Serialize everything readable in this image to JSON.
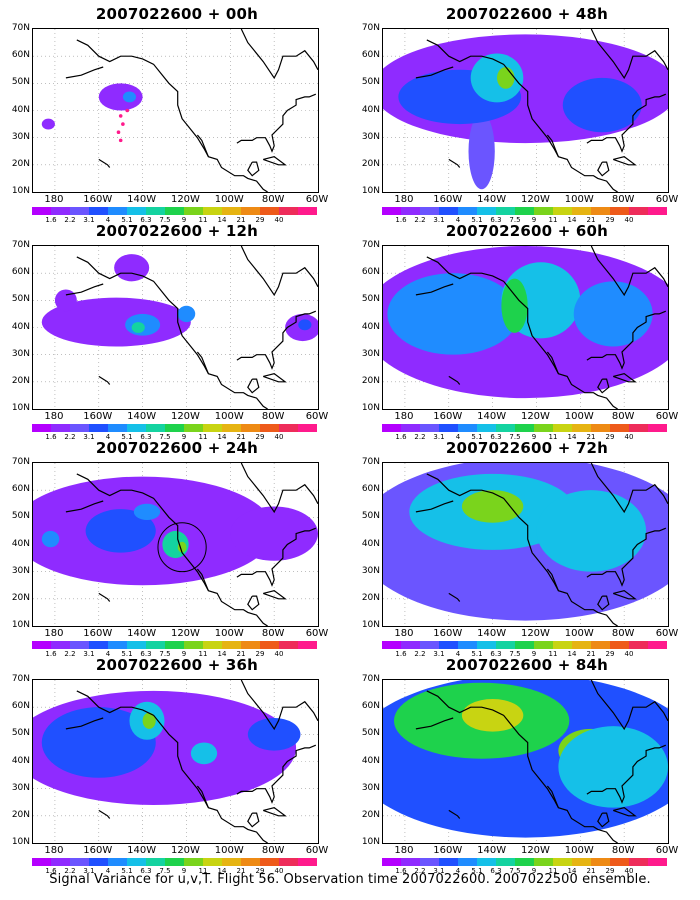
{
  "caption": "Signal Variance for u,v,T. Flight 56. Observation time 2007022600. 2007022500 ensemble.",
  "colorbar": {
    "colors": [
      "#b400ff",
      "#8f2bff",
      "#6b55ff",
      "#2050ff",
      "#1f8cff",
      "#15c0e8",
      "#14d3a0",
      "#1ed24c",
      "#7ad41c",
      "#c8d412",
      "#e6b412",
      "#ee8a14",
      "#ee5a1a",
      "#ee2c5a",
      "#ff1a8c"
    ],
    "labels": [
      "1.6",
      "2.2",
      "3.1",
      "4",
      "5.1",
      "6.3",
      "7.5",
      "9",
      "11",
      "14",
      "21",
      "29",
      "40"
    ]
  },
  "axes": {
    "y_labels": [
      "70N",
      "60N",
      "50N",
      "40N",
      "30N",
      "20N",
      "10N"
    ],
    "x_labels": [
      "180",
      "160W",
      "140W",
      "120W",
      "100W",
      "80W",
      "60W"
    ]
  },
  "chart_data": [
    {
      "type": "heatmap",
      "title": "2007022600 + 00h",
      "lon_range": [
        -190,
        -60
      ],
      "lat_range": [
        10,
        70
      ],
      "blobs": [
        {
          "lon": -150,
          "lat": 45,
          "rx": 10,
          "ry": 5,
          "level": 1
        },
        {
          "lon": -146,
          "lat": 45,
          "rx": 3,
          "ry": 2,
          "level": 4
        },
        {
          "lon": -183,
          "lat": 35,
          "rx": 3,
          "ry": 2,
          "level": 1
        }
      ],
      "markers": [
        {
          "lon": -150,
          "lat": 38
        },
        {
          "lon": -149,
          "lat": 35
        },
        {
          "lon": -151,
          "lat": 32
        },
        {
          "lon": -150,
          "lat": 29
        },
        {
          "lon": -147,
          "lat": 40
        }
      ]
    },
    {
      "type": "heatmap",
      "title": "2007022600 + 12h",
      "lon_range": [
        -190,
        -60
      ],
      "lat_range": [
        10,
        70
      ],
      "blobs": [
        {
          "lon": -152,
          "lat": 42,
          "rx": 34,
          "ry": 9,
          "level": 1
        },
        {
          "lon": -145,
          "lat": 62,
          "rx": 8,
          "ry": 5,
          "level": 1
        },
        {
          "lon": -175,
          "lat": 50,
          "rx": 5,
          "ry": 4,
          "level": 1
        },
        {
          "lon": -140,
          "lat": 41,
          "rx": 8,
          "ry": 4,
          "level": 4
        },
        {
          "lon": -142,
          "lat": 40,
          "rx": 3,
          "ry": 2,
          "level": 6
        },
        {
          "lon": -120,
          "lat": 45,
          "rx": 4,
          "ry": 3,
          "level": 4
        },
        {
          "lon": -67,
          "lat": 40,
          "rx": 8,
          "ry": 5,
          "level": 1
        },
        {
          "lon": -66,
          "lat": 41,
          "rx": 3,
          "ry": 2,
          "level": 3
        }
      ]
    },
    {
      "type": "heatmap",
      "title": "2007022600 + 24h",
      "lon_range": [
        -190,
        -60
      ],
      "lat_range": [
        10,
        70
      ],
      "blobs": [
        {
          "lon": -140,
          "lat": 45,
          "rx": 60,
          "ry": 20,
          "level": 1
        },
        {
          "lon": -80,
          "lat": 44,
          "rx": 20,
          "ry": 10,
          "level": 1
        },
        {
          "lon": -150,
          "lat": 45,
          "rx": 16,
          "ry": 8,
          "level": 3
        },
        {
          "lon": -182,
          "lat": 42,
          "rx": 4,
          "ry": 3,
          "level": 4
        },
        {
          "lon": -125,
          "lat": 40,
          "rx": 6,
          "ry": 5,
          "level": 6
        },
        {
          "lon": -122,
          "lat": 39,
          "rx": 2,
          "ry": 2,
          "level": 8
        },
        {
          "lon": -138,
          "lat": 52,
          "rx": 6,
          "ry": 3,
          "level": 4
        }
      ],
      "rings": [
        {
          "lon": -122,
          "lat": 39,
          "rlon": 11,
          "rlat": 9
        }
      ]
    },
    {
      "type": "heatmap",
      "title": "2007022600 + 36h",
      "lon_range": [
        -190,
        -60
      ],
      "lat_range": [
        10,
        70
      ],
      "blobs": [
        {
          "lon": -135,
          "lat": 45,
          "rx": 65,
          "ry": 21,
          "level": 1
        },
        {
          "lon": -160,
          "lat": 47,
          "rx": 26,
          "ry": 13,
          "level": 3
        },
        {
          "lon": -138,
          "lat": 55,
          "rx": 8,
          "ry": 7,
          "level": 5
        },
        {
          "lon": -137,
          "lat": 55,
          "rx": 3,
          "ry": 3,
          "level": 8
        },
        {
          "lon": -112,
          "lat": 43,
          "rx": 6,
          "ry": 4,
          "level": 5
        },
        {
          "lon": -80,
          "lat": 50,
          "rx": 12,
          "ry": 6,
          "level": 3
        }
      ]
    },
    {
      "type": "heatmap",
      "title": "2007022600 + 48h",
      "lon_range": [
        -190,
        -60
      ],
      "lat_range": [
        10,
        70
      ],
      "blobs": [
        {
          "lon": -125,
          "lat": 48,
          "rx": 70,
          "ry": 20,
          "level": 1
        },
        {
          "lon": -145,
          "lat": 25,
          "rx": 6,
          "ry": 14,
          "level": 2
        },
        {
          "lon": -155,
          "lat": 45,
          "rx": 28,
          "ry": 10,
          "level": 3
        },
        {
          "lon": -138,
          "lat": 52,
          "rx": 12,
          "ry": 9,
          "level": 5
        },
        {
          "lon": -134,
          "lat": 52,
          "rx": 4,
          "ry": 4,
          "level": 8
        },
        {
          "lon": -90,
          "lat": 42,
          "rx": 18,
          "ry": 10,
          "level": 3
        }
      ]
    },
    {
      "type": "heatmap",
      "title": "2007022600 + 60h",
      "lon_range": [
        -190,
        -60
      ],
      "lat_range": [
        10,
        70
      ],
      "blobs": [
        {
          "lon": -125,
          "lat": 42,
          "rx": 75,
          "ry": 28,
          "level": 1
        },
        {
          "lon": -158,
          "lat": 45,
          "rx": 30,
          "ry": 15,
          "level": 4
        },
        {
          "lon": -118,
          "lat": 50,
          "rx": 18,
          "ry": 14,
          "level": 5
        },
        {
          "lon": -130,
          "lat": 48,
          "rx": 6,
          "ry": 10,
          "level": 7
        },
        {
          "lon": -85,
          "lat": 45,
          "rx": 18,
          "ry": 12,
          "level": 4
        }
      ]
    },
    {
      "type": "heatmap",
      "title": "2007022600 + 72h",
      "lon_range": [
        -190,
        -60
      ],
      "lat_range": [
        10,
        70
      ],
      "blobs": [
        {
          "lon": -125,
          "lat": 42,
          "rx": 78,
          "ry": 30,
          "level": 2
        },
        {
          "lon": -140,
          "lat": 52,
          "rx": 38,
          "ry": 14,
          "level": 5
        },
        {
          "lon": -140,
          "lat": 54,
          "rx": 14,
          "ry": 6,
          "level": 8
        },
        {
          "lon": -95,
          "lat": 45,
          "rx": 25,
          "ry": 15,
          "level": 5
        }
      ]
    },
    {
      "type": "heatmap",
      "title": "2007022600 + 84h",
      "lon_range": [
        -190,
        -60
      ],
      "lat_range": [
        10,
        70
      ],
      "blobs": [
        {
          "lon": -125,
          "lat": 42,
          "rx": 80,
          "ry": 30,
          "level": 3
        },
        {
          "lon": -145,
          "lat": 55,
          "rx": 40,
          "ry": 14,
          "level": 7
        },
        {
          "lon": -140,
          "lat": 57,
          "rx": 14,
          "ry": 6,
          "level": 9
        },
        {
          "lon": -95,
          "lat": 44,
          "rx": 15,
          "ry": 8,
          "level": 8
        },
        {
          "lon": -85,
          "lat": 38,
          "rx": 25,
          "ry": 15,
          "level": 5
        }
      ]
    }
  ]
}
